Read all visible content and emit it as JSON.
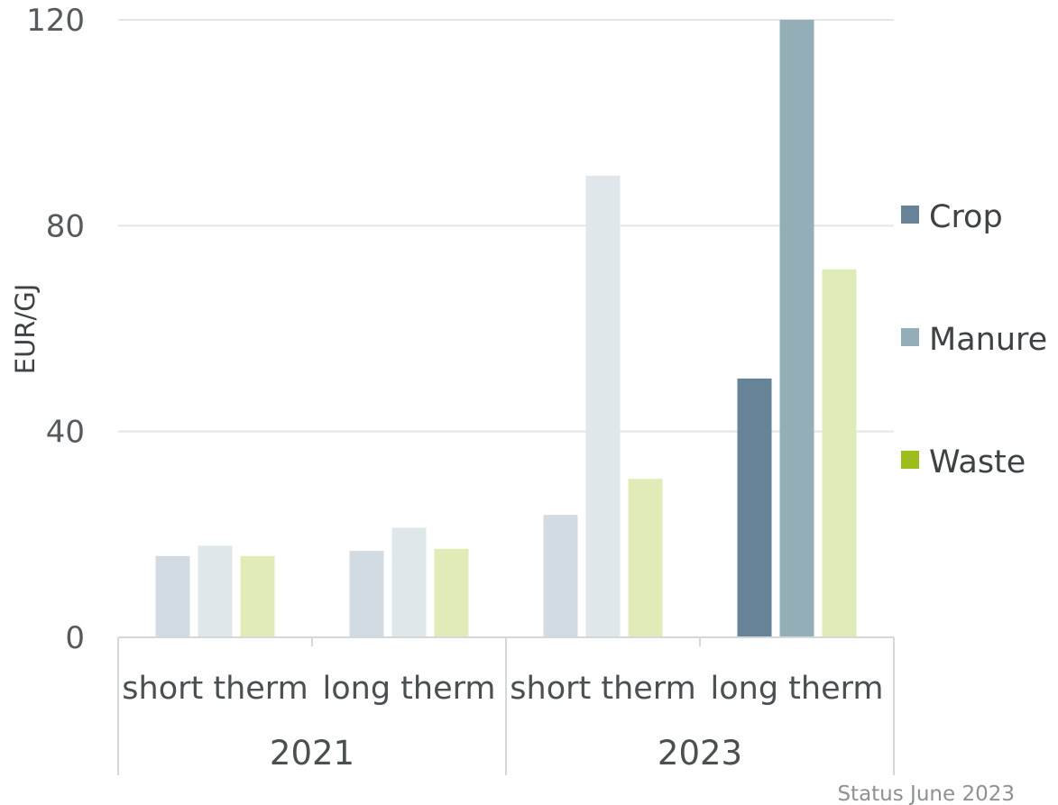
{
  "chart_data": {
    "type": "bar",
    "ylabel": "EUR/GJ",
    "ylim": [
      0,
      120
    ],
    "yticks": [
      0,
      40,
      80,
      120
    ],
    "groups": [
      {
        "label": "2021",
        "categories": [
          "short therm",
          "long therm"
        ]
      },
      {
        "label": "2023",
        "categories": [
          "short therm",
          "long therm"
        ]
      }
    ],
    "categories": [
      "short therm",
      "long therm",
      "short therm",
      "long therm"
    ],
    "series": [
      {
        "name": "Crop",
        "values": [
          15.8,
          16.8,
          23.8,
          50.3
        ]
      },
      {
        "name": "Manure",
        "values": [
          17.8,
          21.3,
          89.7,
          120.5
        ]
      },
      {
        "name": "Waste",
        "values": [
          15.8,
          17.2,
          30.8,
          71.5
        ]
      }
    ],
    "faded_bars_note": "All bars except the 2023 long therm group are shown in light tints",
    "colors": {
      "Crop": "#678397",
      "Manure": "#93aeb6",
      "Waste": "#9cbd1b",
      "Crop_faded": "#d2dbe2",
      "Manure_faded": "#dfe7ea",
      "Waste_faded": "#e1ebb8",
      "Waste_highlight_bar": "#dfebb7"
    },
    "legend_position": "right",
    "grid": true,
    "annotation": "Status June 2023"
  }
}
